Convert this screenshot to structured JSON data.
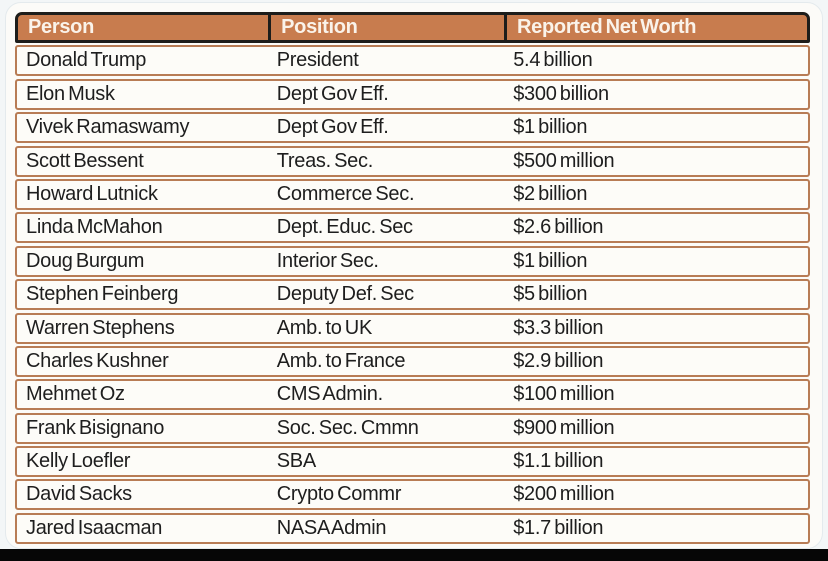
{
  "chart_data": {
    "type": "table",
    "columns": [
      "Person",
      "Position",
      "Reported Net Worth"
    ],
    "rows": [
      {
        "person": "Donald Trump",
        "position": "President",
        "net_worth": "5.4 billion"
      },
      {
        "person": "Elon Musk",
        "position": "Dept Gov Eff.",
        "net_worth": "$300 billion"
      },
      {
        "person": "Vivek Ramaswamy",
        "position": "Dept Gov Eff.",
        "net_worth": "$1 billion"
      },
      {
        "person": "Scott Bessent",
        "position": "Treas. Sec.",
        "net_worth": "$500 million"
      },
      {
        "person": "Howard Lutnick",
        "position": "Commerce Sec.",
        "net_worth": "$2 billion"
      },
      {
        "person": "Linda McMahon",
        "position": "Dept. Educ. Sec",
        "net_worth": "$2.6 billion"
      },
      {
        "person": "Doug Burgum",
        "position": "Interior Sec.",
        "net_worth": "$1 billion"
      },
      {
        "person": "Stephen Feinberg",
        "position": "Deputy Def. Sec",
        "net_worth": "$5 billion"
      },
      {
        "person": "Warren Stephens",
        "position": "Amb. to UK",
        "net_worth": "$3.3 billion"
      },
      {
        "person": "Charles Kushner",
        "position": "Amb. to France",
        "net_worth": "$2.9 billion"
      },
      {
        "person": "Mehmet Oz",
        "position": "CMS Admin.",
        "net_worth": "$100 million"
      },
      {
        "person": "Frank Bisignano",
        "position": "Soc. Sec. Cmmn",
        "net_worth": "$900 million"
      },
      {
        "person": "Kelly Loefler",
        "position": "SBA",
        "net_worth": "$1.1 billion"
      },
      {
        "person": "David Sacks",
        "position": "Crypto Commr",
        "net_worth": "$200 million"
      },
      {
        "person": "Jared Isaacman",
        "position": "NASA Admin",
        "net_worth": "$1.7 billion"
      }
    ]
  },
  "colors": {
    "header_bg": "#c87c4e",
    "header_text": "#faf3ea",
    "header_border": "#1d1d1b",
    "row_border": "#b87c55",
    "row_bg": "#fdfcf8",
    "text": "#1e1e1e"
  }
}
